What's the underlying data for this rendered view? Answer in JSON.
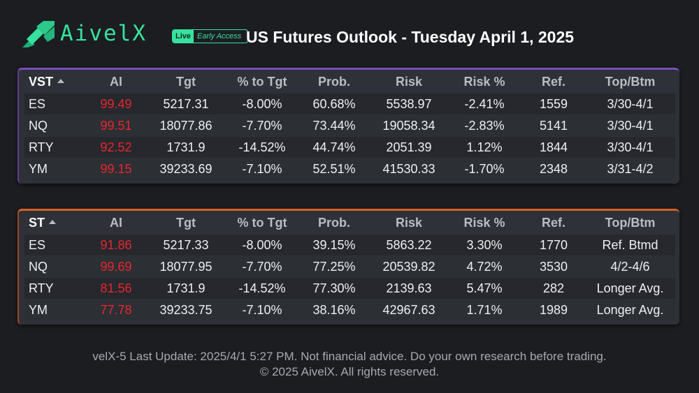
{
  "brand": {
    "name": "AivelX",
    "badge_live": "Live",
    "badge_access": "Early Access",
    "accent": "#37e29e"
  },
  "title": "US Futures Outlook - Tuesday April 1, 2025",
  "columns": [
    "AI",
    "Tgt",
    "% to Tgt",
    "Prob.",
    "Risk",
    "Risk %",
    "Ref.",
    "Top/Btm"
  ],
  "vst": {
    "label": "VST",
    "accent": "#7a4fb8",
    "rows": [
      {
        "sym": "ES",
        "ai": "99.49",
        "tgt": "5217.31",
        "pct": "-8.00%",
        "prob": "60.68%",
        "risk": "5538.97",
        "riskpct": "-2.41%",
        "ref": "1559",
        "topbtm": "3/30-4/1"
      },
      {
        "sym": "NQ",
        "ai": "99.51",
        "tgt": "18077.86",
        "pct": "-7.70%",
        "prob": "73.44%",
        "risk": "19058.34",
        "riskpct": "-2.83%",
        "ref": "5141",
        "topbtm": "3/30-4/1"
      },
      {
        "sym": "RTY",
        "ai": "92.52",
        "tgt": "1731.9",
        "pct": "-14.52%",
        "prob": "44.74%",
        "risk": "2051.39",
        "riskpct": "1.12%",
        "ref": "1844",
        "topbtm": "3/30-4/1"
      },
      {
        "sym": "YM",
        "ai": "99.15",
        "tgt": "39233.69",
        "pct": "-7.10%",
        "prob": "52.51%",
        "risk": "41530.33",
        "riskpct": "-1.70%",
        "ref": "2348",
        "topbtm": "3/31-4/2"
      }
    ]
  },
  "st": {
    "label": "ST",
    "accent": "#d4622a",
    "rows": [
      {
        "sym": "ES",
        "ai": "91.86",
        "tgt": "5217.33",
        "pct": "-8.00%",
        "prob": "39.15%",
        "risk": "5863.22",
        "riskpct": "3.30%",
        "ref": "1770",
        "topbtm": "Ref. Btmd"
      },
      {
        "sym": "NQ",
        "ai": "99.69",
        "tgt": "18077.95",
        "pct": "-7.70%",
        "prob": "77.25%",
        "risk": "20539.82",
        "riskpct": "4.72%",
        "ref": "3530",
        "topbtm": "4/2-4/6"
      },
      {
        "sym": "RTY",
        "ai": "81.56",
        "tgt": "1731.9",
        "pct": "-14.52%",
        "prob": "77.30%",
        "risk": "2139.63",
        "riskpct": "5.47%",
        "ref": "282",
        "topbtm": "Longer Avg."
      },
      {
        "sym": "YM",
        "ai": "77.78",
        "tgt": "39233.75",
        "pct": "-7.10%",
        "prob": "38.16%",
        "risk": "42967.63",
        "riskpct": "1.71%",
        "ref": "1989",
        "topbtm": "Longer Avg."
      }
    ]
  },
  "footer": {
    "line1": "velX-5 Last Update: 2025/4/1 5:27 PM. Not financial advice. Do your own research before trading.",
    "line2": "© 2025 AivelX. All rights reserved."
  }
}
